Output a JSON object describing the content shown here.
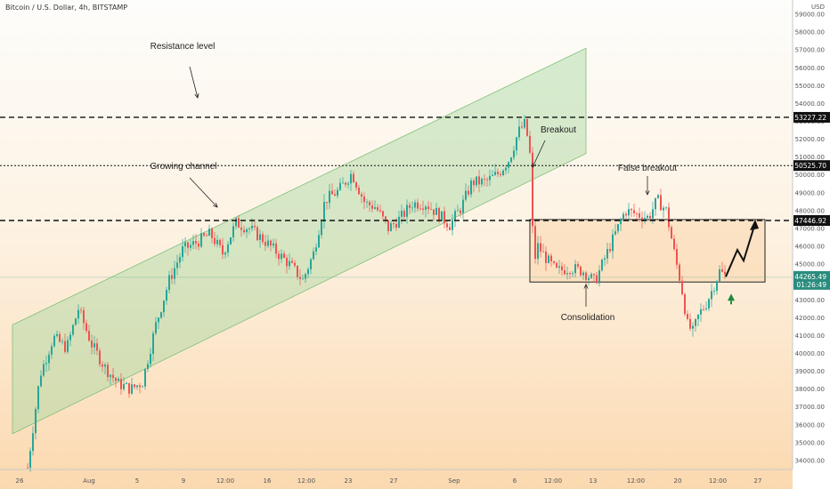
{
  "symbol_header": "Bitcoin / U.S. Dollar, 4h, BITSTAMP",
  "currency_label": "USD",
  "chart_data": {
    "type": "candlestick",
    "y_axis": {
      "ylim": [
        33500,
        59800
      ],
      "ticks": [
        34000,
        35000,
        36000,
        37000,
        38000,
        39000,
        40000,
        41000,
        42000,
        43000,
        44000,
        45000,
        46000,
        47000,
        48000,
        49000,
        50000,
        51000,
        52000,
        53000,
        54000,
        55000,
        56000,
        57000,
        58000,
        59000
      ]
    },
    "x_tick_labels": [
      "26",
      "Aug",
      "5",
      "9",
      "12:00",
      "16",
      "12:00",
      "23",
      "27",
      "Sep",
      "6",
      "12:00",
      "13",
      "12:00",
      "20",
      "12:00",
      "27"
    ],
    "levels": [
      {
        "value": 53227.22,
        "label": "53227.22",
        "style": "dashed"
      },
      {
        "value": 50525.7,
        "label": "50525.70",
        "style": "dotted"
      },
      {
        "value": 47446.92,
        "label": "47446.92",
        "style": "dashed"
      }
    ],
    "current_price": {
      "label": "44265.49",
      "countdown": "01:26:49"
    },
    "annotations": [
      "Resistance level",
      "Growing channel",
      "Breakout",
      "False breakout",
      "Consolidation"
    ],
    "path_points": [
      [
        31,
        33600
      ],
      [
        45,
        38800
      ],
      [
        60,
        40900
      ],
      [
        75,
        40300
      ],
      [
        88,
        42500
      ],
      [
        103,
        40500
      ],
      [
        118,
        39200
      ],
      [
        133,
        38300
      ],
      [
        147,
        38000
      ],
      [
        160,
        38400
      ],
      [
        175,
        41600
      ],
      [
        190,
        44100
      ],
      [
        205,
        45800
      ],
      [
        220,
        46200
      ],
      [
        236,
        46700
      ],
      [
        250,
        45600
      ],
      [
        265,
        47300
      ],
      [
        280,
        47000
      ],
      [
        295,
        46400
      ],
      [
        310,
        45700
      ],
      [
        325,
        45000
      ],
      [
        340,
        44100
      ],
      [
        352,
        45600
      ],
      [
        365,
        48600
      ],
      [
        380,
        49100
      ],
      [
        395,
        50100
      ],
      [
        410,
        48400
      ],
      [
        422,
        48200
      ],
      [
        436,
        47000
      ],
      [
        450,
        47600
      ],
      [
        463,
        48400
      ],
      [
        478,
        48400
      ],
      [
        492,
        47800
      ],
      [
        505,
        47200
      ],
      [
        518,
        48200
      ],
      [
        530,
        49600
      ],
      [
        545,
        49600
      ],
      [
        560,
        50100
      ],
      [
        572,
        50900
      ],
      [
        582,
        52400
      ],
      [
        590,
        52900
      ],
      [
        596,
        50800
      ],
      [
        599,
        45000
      ],
      [
        604,
        46000
      ],
      [
        615,
        45200
      ],
      [
        625,
        44600
      ],
      [
        640,
        44800
      ],
      [
        655,
        44600
      ],
      [
        668,
        44000
      ],
      [
        678,
        45200
      ],
      [
        690,
        46600
      ],
      [
        702,
        48000
      ],
      [
        715,
        47800
      ],
      [
        728,
        47600
      ],
      [
        738,
        48600
      ],
      [
        748,
        48000
      ],
      [
        758,
        45400
      ],
      [
        765,
        43800
      ],
      [
        772,
        41600
      ],
      [
        778,
        41200
      ],
      [
        785,
        42200
      ],
      [
        793,
        42800
      ],
      [
        800,
        43600
      ],
      [
        808,
        44600
      ],
      [
        815,
        44300
      ]
    ]
  }
}
